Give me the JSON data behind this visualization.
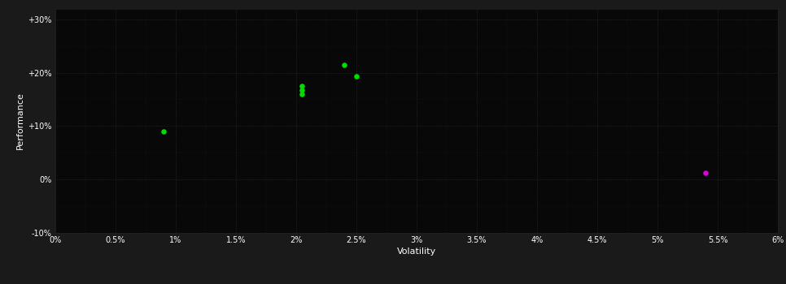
{
  "background_color": "#1a1a1a",
  "plot_bg_color": "#080808",
  "grid_color": "#333333",
  "text_color": "#ffffff",
  "xlabel": "Volatility",
  "ylabel": "Performance",
  "xlim": [
    0.0,
    0.06
  ],
  "ylim": [
    -0.1,
    0.32
  ],
  "xtick_values": [
    0.0,
    0.005,
    0.01,
    0.015,
    0.02,
    0.025,
    0.03,
    0.035,
    0.04,
    0.045,
    0.05,
    0.055,
    0.06
  ],
  "xtick_labels": [
    "0%",
    "0.5%",
    "1%",
    "1.5%",
    "2%",
    "2.5%",
    "3%",
    "3.5%",
    "4%",
    "4.5%",
    "5%",
    "5.5%",
    "6%"
  ],
  "ytick_values": [
    -0.1,
    0.0,
    0.1,
    0.2,
    0.3
  ],
  "ytick_labels": [
    "-10%",
    "0%",
    "+10%",
    "+20%",
    "+30%"
  ],
  "green_points": [
    [
      0.009,
      0.09
    ],
    [
      0.0205,
      0.175
    ],
    [
      0.0205,
      0.168
    ],
    [
      0.0205,
      0.16
    ],
    [
      0.024,
      0.215
    ],
    [
      0.025,
      0.193
    ]
  ],
  "magenta_points": [
    [
      0.054,
      0.013
    ]
  ],
  "green_color": "#00dd00",
  "magenta_color": "#dd00dd",
  "marker_size": 22,
  "figsize": [
    9.66,
    3.5
  ],
  "dpi": 100
}
